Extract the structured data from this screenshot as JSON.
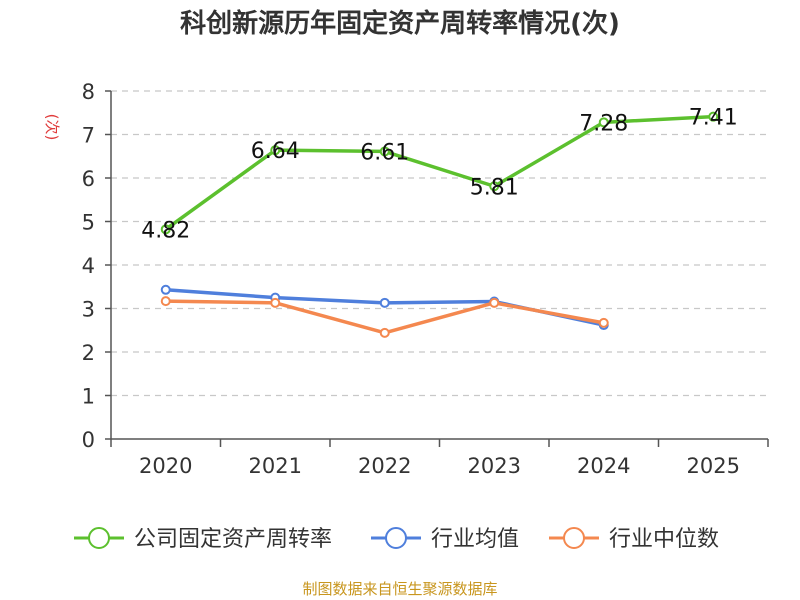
{
  "chart_data": {
    "type": "line",
    "title": "科创新源历年固定资产周转率情况(次)",
    "ylabel": "(次)",
    "xlabel": "",
    "categories": [
      "2020",
      "2021",
      "2022",
      "2023",
      "2024",
      "2025"
    ],
    "ylim": [
      0,
      8
    ],
    "yticks": [
      0,
      1,
      2,
      3,
      4,
      5,
      6,
      7,
      8
    ],
    "grid": true,
    "legend_position": "bottom",
    "series": [
      {
        "name": "公司固定资产周转率",
        "color": "#5cc02e",
        "values": [
          4.82,
          6.64,
          6.61,
          5.81,
          7.28,
          7.41
        ],
        "labels": [
          "4.82",
          "6.64",
          "6.61",
          "5.81",
          "7.28",
          "7.41"
        ]
      },
      {
        "name": "行业均值",
        "color": "#4f7fdc",
        "values": [
          3.43,
          3.25,
          3.13,
          3.16,
          2.62,
          null
        ]
      },
      {
        "name": "行业中位数",
        "color": "#f4884f",
        "values": [
          3.17,
          3.13,
          2.44,
          3.13,
          2.67,
          null
        ]
      }
    ]
  },
  "source": "制图数据来自恒生聚源数据库"
}
